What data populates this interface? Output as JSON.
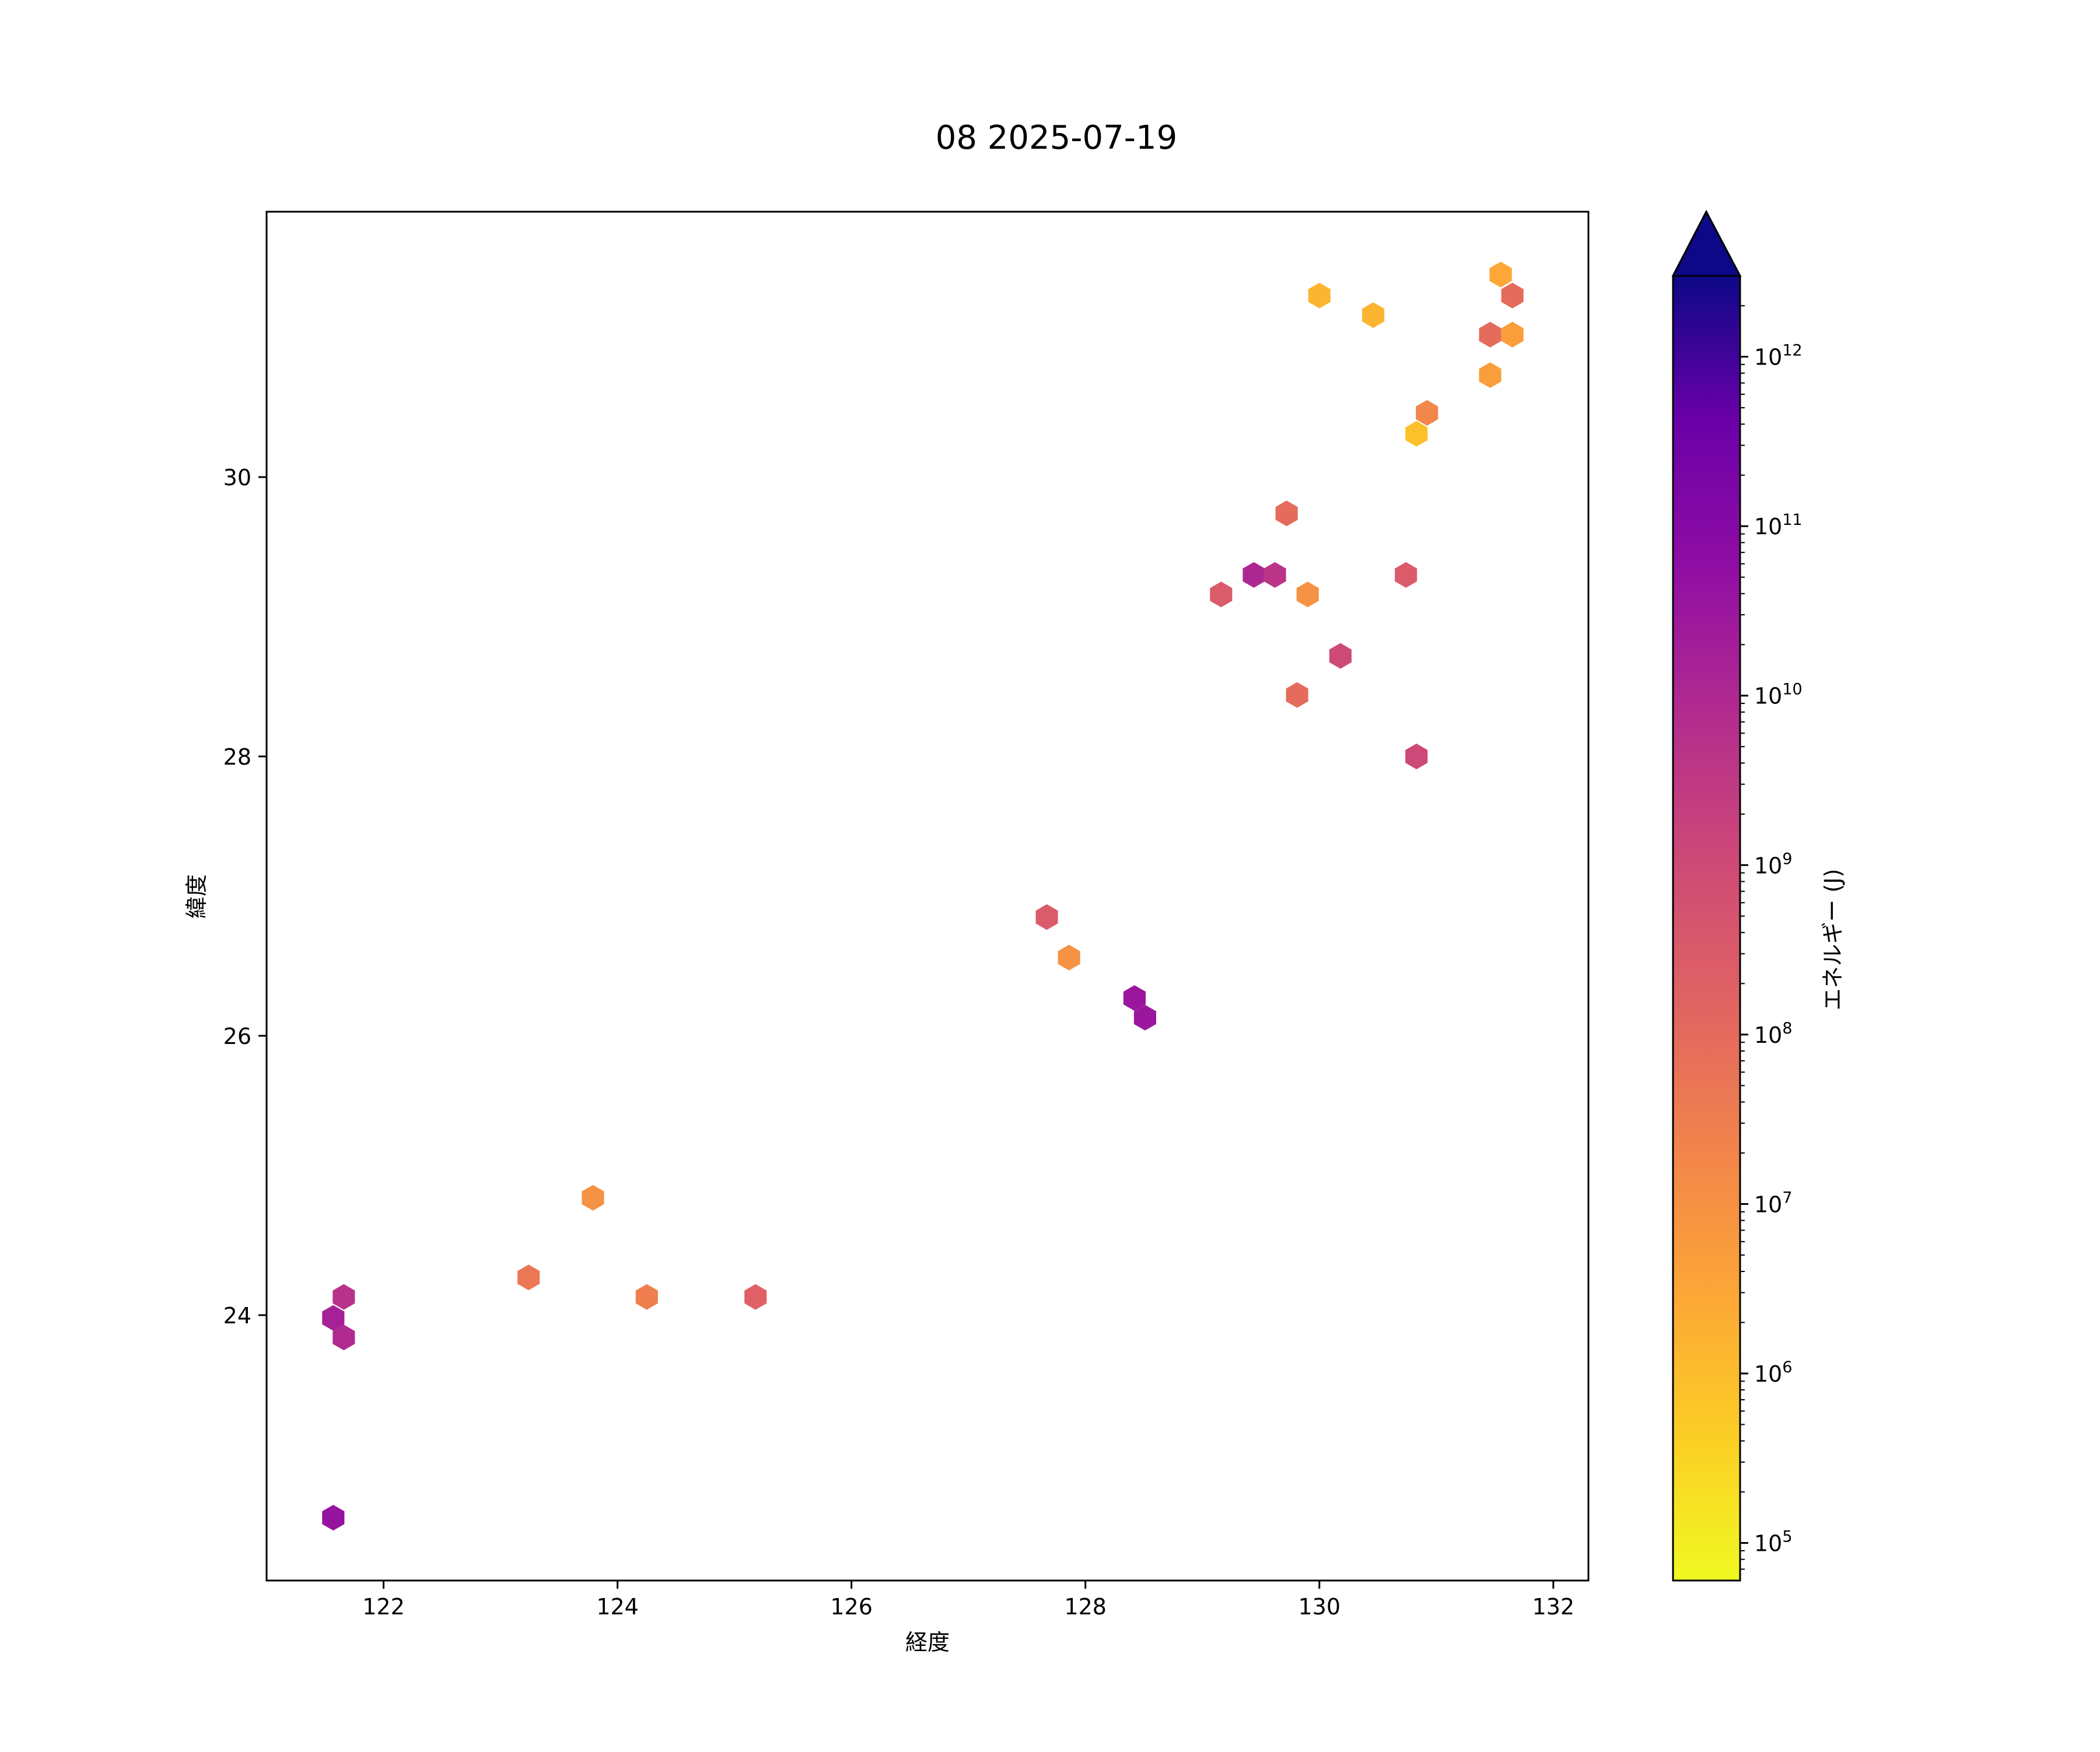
{
  "chart_data": {
    "type": "scatter",
    "title": "08 2025-07-19",
    "xlabel": "経度",
    "ylabel": "緯度",
    "xlim": [
      121.0,
      132.3
    ],
    "ylim": [
      22.1,
      31.9
    ],
    "x_ticks": [
      122,
      124,
      126,
      128,
      130,
      132
    ],
    "y_ticks": [
      24,
      26,
      28,
      30
    ],
    "grid": false,
    "colorbar": {
      "label": "エネルギー (J)",
      "scale": "log",
      "colormap": "plasma_r",
      "range": [
        60000,
        3000000000000
      ],
      "extend": "max",
      "extend_color": "#0d0887",
      "ticks": [
        {
          "value": 100000,
          "base": "10",
          "exp": "5"
        },
        {
          "value": 1000000,
          "base": "10",
          "exp": "6"
        },
        {
          "value": 10000000,
          "base": "10",
          "exp": "7"
        },
        {
          "value": 100000000,
          "base": "10",
          "exp": "8"
        },
        {
          "value": 1000000000,
          "base": "10",
          "exp": "9"
        },
        {
          "value": 10000000000,
          "base": "10",
          "exp": "10"
        },
        {
          "value": 100000000000,
          "base": "10",
          "exp": "11"
        },
        {
          "value": 1000000000000,
          "base": "10",
          "exp": "12"
        }
      ]
    },
    "points": [
      {
        "x": 131.55,
        "y": 31.45,
        "energy": 3000000
      },
      {
        "x": 131.65,
        "y": 31.3,
        "energy": 100000000
      },
      {
        "x": 130.0,
        "y": 31.3,
        "energy": 1500000
      },
      {
        "x": 130.46,
        "y": 31.16,
        "energy": 1500000
      },
      {
        "x": 131.46,
        "y": 31.02,
        "energy": 100000000
      },
      {
        "x": 131.65,
        "y": 31.02,
        "energy": 5000000
      },
      {
        "x": 131.46,
        "y": 30.73,
        "energy": 5000000
      },
      {
        "x": 130.92,
        "y": 30.46,
        "energy": 20000000
      },
      {
        "x": 130.83,
        "y": 30.31,
        "energy": 800000
      },
      {
        "x": 129.72,
        "y": 29.74,
        "energy": 100000000
      },
      {
        "x": 129.44,
        "y": 29.3,
        "energy": 10000000000
      },
      {
        "x": 129.62,
        "y": 29.3,
        "energy": 4000000000
      },
      {
        "x": 130.74,
        "y": 29.3,
        "energy": 300000000
      },
      {
        "x": 129.16,
        "y": 29.16,
        "energy": 300000000
      },
      {
        "x": 129.9,
        "y": 29.16,
        "energy": 10000000
      },
      {
        "x": 130.18,
        "y": 28.72,
        "energy": 1000000000
      },
      {
        "x": 129.81,
        "y": 28.44,
        "energy": 100000000
      },
      {
        "x": 130.83,
        "y": 28.0,
        "energy": 1000000000
      },
      {
        "x": 127.67,
        "y": 26.85,
        "energy": 300000000
      },
      {
        "x": 127.86,
        "y": 26.56,
        "energy": 10000000
      },
      {
        "x": 128.42,
        "y": 26.27,
        "energy": 30000000000
      },
      {
        "x": 128.51,
        "y": 26.13,
        "energy": 30000000000
      },
      {
        "x": 123.79,
        "y": 24.84,
        "energy": 10000000
      },
      {
        "x": 123.24,
        "y": 24.27,
        "energy": 50000000
      },
      {
        "x": 124.25,
        "y": 24.13,
        "energy": 30000000
      },
      {
        "x": 125.18,
        "y": 24.13,
        "energy": 200000000
      },
      {
        "x": 121.66,
        "y": 24.13,
        "energy": 5000000000
      },
      {
        "x": 121.57,
        "y": 23.98,
        "energy": 15000000000
      },
      {
        "x": 121.66,
        "y": 23.84,
        "energy": 8000000000
      },
      {
        "x": 121.57,
        "y": 22.55,
        "energy": 40000000000
      }
    ]
  }
}
